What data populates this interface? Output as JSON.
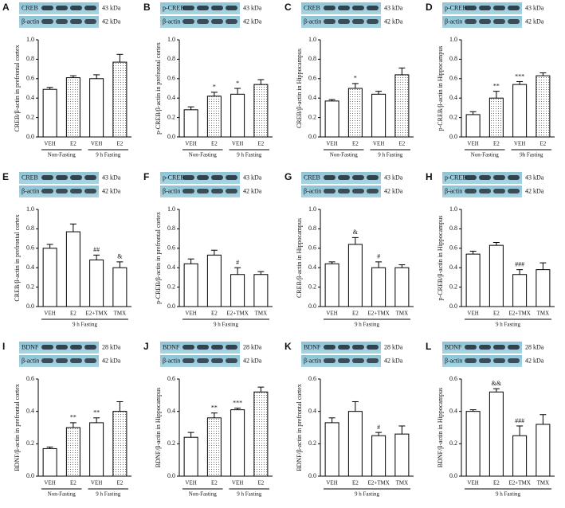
{
  "chart_data": [
    {
      "type": "bar",
      "panel": "A",
      "ylabel": "CREB/β-actin in prefrontal cortex",
      "blot": [
        {
          "name": "CREB",
          "size": "43 kDa"
        },
        {
          "name": "β-actin",
          "size": "42 kDa"
        }
      ],
      "categories": [
        "VEH",
        "E2",
        "VEH",
        "E2"
      ],
      "groups": [
        "Non-Fasting",
        "9 h Fasting"
      ],
      "values": [
        0.49,
        0.61,
        0.6,
        0.77
      ],
      "errors": [
        0.02,
        0.02,
        0.04,
        0.08
      ],
      "annotations": [
        null,
        null,
        null,
        null
      ],
      "patterns": [
        "plain",
        "dotted",
        "plain",
        "dotted"
      ],
      "ylim": [
        0,
        1.0
      ],
      "yticks": [
        {
          "value": 0,
          "label": "0.0"
        },
        0.2,
        0.4,
        0.6,
        0.8,
        {
          "value": 1.0,
          "label": "1.0"
        }
      ]
    },
    {
      "type": "bar",
      "panel": "B",
      "ylabel": "p-CREB/β-actin in prefrontal cortex",
      "blot": [
        {
          "name": "p-CREB",
          "size": "43 kDa"
        },
        {
          "name": "β-actin",
          "size": "42 kDa"
        }
      ],
      "categories": [
        "VEH",
        "E2",
        "VEH",
        "E2"
      ],
      "groups": [
        "Non-Fasting",
        "9 h Fasting"
      ],
      "values": [
        0.28,
        0.42,
        0.44,
        0.54
      ],
      "errors": [
        0.03,
        0.04,
        0.06,
        0.05
      ],
      "annotations": [
        null,
        "*",
        "*",
        null
      ],
      "patterns": [
        "plain",
        "dotted",
        "plain",
        "dotted"
      ],
      "ylim": [
        0,
        1.0
      ],
      "yticks": [
        {
          "value": 0,
          "label": "0.0"
        },
        0.2,
        0.4,
        0.6,
        0.8,
        {
          "value": 1.0,
          "label": "1.0"
        }
      ]
    },
    {
      "type": "bar",
      "panel": "C",
      "ylabel": "CREB/β-actin in Hippocampus",
      "blot": [
        {
          "name": "CREB",
          "size": "43 kDa"
        },
        {
          "name": "β-actin",
          "size": "42 kDa"
        }
      ],
      "categories": [
        "VEH",
        "E2",
        "VEH",
        "E2"
      ],
      "groups": [
        "Non-Fasting",
        "9 h Fasting"
      ],
      "values": [
        0.37,
        0.5,
        0.44,
        0.64
      ],
      "errors": [
        0.015,
        0.05,
        0.03,
        0.07
      ],
      "annotations": [
        null,
        "*",
        null,
        null
      ],
      "patterns": [
        "plain",
        "dotted",
        "plain",
        "dotted"
      ],
      "ylim": [
        0,
        1.0
      ],
      "yticks": [
        {
          "value": 0,
          "label": "0.0"
        },
        0.2,
        0.4,
        0.6,
        0.8,
        {
          "value": 1.0,
          "label": "1.0"
        }
      ]
    },
    {
      "type": "bar",
      "panel": "D",
      "ylabel": "p-CREB/β-actin in Hippocampus",
      "blot": [
        {
          "name": "p-CREB",
          "size": "43 kDa"
        },
        {
          "name": "β-actin",
          "size": "42 kDa"
        }
      ],
      "categories": [
        "VEH",
        "E2",
        "VEH",
        "E2"
      ],
      "groups": [
        "Non-Fasting",
        "9h Fasting"
      ],
      "values": [
        0.23,
        0.4,
        0.54,
        0.63
      ],
      "errors": [
        0.03,
        0.07,
        0.03,
        0.03
      ],
      "annotations": [
        null,
        "**",
        "***",
        null
      ],
      "patterns": [
        "plain",
        "dotted",
        "plain",
        "dotted"
      ],
      "ylim": [
        0,
        1.0
      ],
      "yticks": [
        {
          "value": 0,
          "label": "0.0"
        },
        0.2,
        0.4,
        0.6,
        0.8,
        {
          "value": 1.0,
          "label": "1.0"
        }
      ]
    },
    {
      "type": "bar",
      "panel": "E",
      "ylabel": "CREB/β-actin in prefrontal cortex",
      "blot": [
        {
          "name": "CREB",
          "size": "43 kDa"
        },
        {
          "name": "β-actin",
          "size": "42 kDa"
        }
      ],
      "categories": [
        "VEH",
        "E2",
        "E2+TMX",
        "TMX"
      ],
      "groups": [
        "9 h Fasting"
      ],
      "values": [
        0.6,
        0.77,
        0.48,
        0.4
      ],
      "errors": [
        0.04,
        0.08,
        0.05,
        0.06
      ],
      "annotations": [
        null,
        null,
        "##",
        "&"
      ],
      "patterns": [
        "plain",
        "plain",
        "plain",
        "plain"
      ],
      "ylim": [
        0,
        1.0
      ],
      "yticks": [
        {
          "value": 0,
          "label": "0.0"
        },
        0.2,
        0.4,
        0.6,
        0.8,
        {
          "value": 1.0,
          "label": "1.0"
        }
      ]
    },
    {
      "type": "bar",
      "panel": "F",
      "ylabel": "p-CREB/β-actin in prefrontal cortex",
      "blot": [
        {
          "name": "p-CREB",
          "size": "43 kDa"
        },
        {
          "name": "β-actin",
          "size": "42 kDa"
        }
      ],
      "categories": [
        "VEH",
        "E2",
        "E2+TMX",
        "TMX"
      ],
      "groups": [
        "9 h Fasting"
      ],
      "values": [
        0.44,
        0.53,
        0.33,
        0.33
      ],
      "errors": [
        0.05,
        0.05,
        0.07,
        0.03
      ],
      "annotations": [
        null,
        null,
        "#",
        null
      ],
      "patterns": [
        "plain",
        "plain",
        "plain",
        "plain"
      ],
      "ylim": [
        0,
        1.0
      ],
      "yticks": [
        {
          "value": 0,
          "label": "0.0"
        },
        0.2,
        0.4,
        0.6,
        0.8,
        {
          "value": 1.0,
          "label": "1.0"
        }
      ]
    },
    {
      "type": "bar",
      "panel": "G",
      "ylabel": "CREB/β-actin in Hippocampus",
      "blot": [
        {
          "name": "CREB",
          "size": "43 kDa"
        },
        {
          "name": "β-actin",
          "size": "42 kDa"
        }
      ],
      "categories": [
        "VEH",
        "E2",
        "E2+TMX",
        "TMX"
      ],
      "groups": [
        "9 h Fasting"
      ],
      "values": [
        0.44,
        0.64,
        0.4,
        0.4
      ],
      "errors": [
        0.02,
        0.07,
        0.06,
        0.03
      ],
      "annotations": [
        null,
        "&",
        "#",
        null
      ],
      "patterns": [
        "plain",
        "plain",
        "plain",
        "plain"
      ],
      "ylim": [
        0,
        1.0
      ],
      "yticks": [
        {
          "value": 0,
          "label": "0.0"
        },
        0.2,
        0.4,
        0.6,
        0.8,
        {
          "value": 1.0,
          "label": "1.0"
        }
      ]
    },
    {
      "type": "bar",
      "panel": "H",
      "ylabel": "p-CREB/β-actin in Hippocampus",
      "blot": [
        {
          "name": "p-CREB",
          "size": "43 kDa"
        },
        {
          "name": "β-actin",
          "size": "42 kDa"
        }
      ],
      "categories": [
        "VEH",
        "E2",
        "E2+TMX",
        "TMX"
      ],
      "groups": [
        "9 h Fasting"
      ],
      "values": [
        0.54,
        0.63,
        0.33,
        0.38
      ],
      "errors": [
        0.03,
        0.03,
        0.05,
        0.07
      ],
      "annotations": [
        null,
        null,
        "###",
        null
      ],
      "patterns": [
        "plain",
        "plain",
        "plain",
        "plain"
      ],
      "ylim": [
        0,
        1.0
      ],
      "yticks": [
        {
          "value": 0,
          "label": "0.0"
        },
        0.2,
        0.4,
        0.6,
        0.8,
        {
          "value": 1.0,
          "label": "1.0"
        }
      ]
    },
    {
      "type": "bar",
      "panel": "I",
      "ylabel": "BDNF/β-actin in prefrontal cortex",
      "blot": [
        {
          "name": "BDNF",
          "size": "28 kDa"
        },
        {
          "name": "β-actin",
          "size": "42 kDa"
        }
      ],
      "categories": [
        "VEH",
        "E2",
        "VEH",
        "E2"
      ],
      "groups": [
        "Non-Fasting",
        "9 h Fasting"
      ],
      "values": [
        0.17,
        0.3,
        0.33,
        0.4
      ],
      "errors": [
        0.01,
        0.03,
        0.03,
        0.06
      ],
      "annotations": [
        null,
        "**",
        "**",
        null
      ],
      "patterns": [
        "plain",
        "dotted",
        "plain",
        "dotted"
      ],
      "ylim": [
        0,
        0.6
      ],
      "yticks": [
        {
          "value": 0,
          "label": "0.0"
        },
        0.2,
        0.4,
        0.6
      ]
    },
    {
      "type": "bar",
      "panel": "J",
      "ylabel": "BDNF/β-actin in Hippocampus",
      "blot": [
        {
          "name": "BDNF",
          "size": "28 kDa"
        },
        {
          "name": "β-actin",
          "size": "42 kDa"
        }
      ],
      "categories": [
        "VEH",
        "E2",
        "VEH",
        "E2"
      ],
      "groups": [
        "Non-Fasting",
        "9 h Fasting"
      ],
      "values": [
        0.24,
        0.36,
        0.41,
        0.52
      ],
      "errors": [
        0.03,
        0.03,
        0.01,
        0.03
      ],
      "annotations": [
        null,
        "**",
        "***",
        null
      ],
      "patterns": [
        "plain",
        "dotted",
        "plain",
        "dotted"
      ],
      "ylim": [
        0,
        0.6
      ],
      "yticks": [
        {
          "value": 0,
          "label": "0.0"
        },
        0.2,
        0.4,
        0.6
      ]
    },
    {
      "type": "bar",
      "panel": "K",
      "ylabel": "BDNF/β-actin in prefrontal cortex",
      "blot": [
        {
          "name": "BDNF",
          "size": "28 kDa"
        },
        {
          "name": "β-actin",
          "size": "42 kDa"
        }
      ],
      "categories": [
        "VEH",
        "E2",
        "E2+TMX",
        "TMX"
      ],
      "groups": [
        "9 h Fasting"
      ],
      "values": [
        0.33,
        0.4,
        0.25,
        0.26
      ],
      "errors": [
        0.03,
        0.06,
        0.02,
        0.05
      ],
      "annotations": [
        null,
        null,
        "#",
        null
      ],
      "patterns": [
        "plain",
        "plain",
        "plain",
        "plain"
      ],
      "ylim": [
        0,
        0.6
      ],
      "yticks": [
        {
          "value": 0,
          "label": "0.0"
        },
        0.2,
        0.4,
        0.6
      ]
    },
    {
      "type": "bar",
      "panel": "L",
      "ylabel": "BDNF/β-actin in Hippocampus",
      "blot": [
        {
          "name": "BDNF",
          "size": "28 kDa"
        },
        {
          "name": "β-actin",
          "size": "42 kDa"
        }
      ],
      "categories": [
        "VEH",
        "E2",
        "E2+TMX",
        "TMX"
      ],
      "groups": [
        "9 h Fasting"
      ],
      "values": [
        0.4,
        0.52,
        0.25,
        0.32
      ],
      "errors": [
        0.01,
        0.02,
        0.06,
        0.06
      ],
      "annotations": [
        null,
        "&&",
        "###",
        null
      ],
      "patterns": [
        "plain",
        "plain",
        "plain",
        "plain"
      ],
      "ylim": [
        0,
        0.6
      ],
      "yticks": [
        {
          "value": 0,
          "label": "0.0"
        },
        0.2,
        0.4,
        0.6
      ]
    }
  ]
}
